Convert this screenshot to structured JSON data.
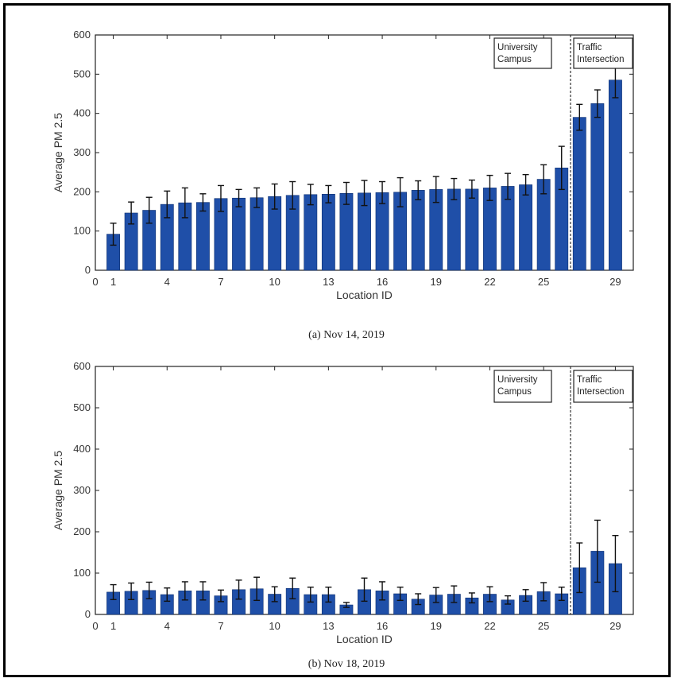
{
  "chart_data": [
    {
      "type": "bar",
      "caption": "(a) Nov 14, 2019",
      "xlabel": "Location ID",
      "ylabel": "Average PM 2.5",
      "ylim": [
        0,
        600
      ],
      "xlim": [
        0,
        30
      ],
      "yticks": [
        0,
        100,
        200,
        300,
        400,
        500,
        600
      ],
      "xticks": [
        0,
        1,
        4,
        7,
        10,
        13,
        16,
        19,
        22,
        25,
        29
      ],
      "bar_color": "#1f4fa8",
      "regions": [
        {
          "label_lines": [
            "University",
            "Campus"
          ]
        },
        {
          "label_lines": [
            "Traffic",
            "Intersection"
          ]
        }
      ],
      "divider_x": 26.5,
      "x": [
        1,
        2,
        3,
        4,
        5,
        6,
        7,
        8,
        9,
        10,
        11,
        12,
        13,
        14,
        15,
        16,
        17,
        18,
        19,
        20,
        21,
        22,
        23,
        24,
        25,
        26,
        27,
        28,
        29
      ],
      "values": [
        92,
        146,
        153,
        168,
        172,
        173,
        183,
        184,
        185,
        188,
        191,
        193,
        194,
        196,
        197,
        198,
        199,
        204,
        206,
        207,
        207,
        210,
        214,
        218,
        232,
        261,
        390,
        425,
        485
      ],
      "errors": [
        28,
        28,
        33,
        34,
        38,
        22,
        33,
        22,
        25,
        32,
        35,
        26,
        22,
        28,
        32,
        28,
        37,
        24,
        33,
        27,
        23,
        32,
        33,
        26,
        37,
        55,
        33,
        35,
        45
      ]
    },
    {
      "type": "bar",
      "caption": "(b) Nov 18, 2019",
      "xlabel": "Location ID",
      "ylabel": "Average PM 2.5",
      "ylim": [
        0,
        600
      ],
      "xlim": [
        0,
        30
      ],
      "yticks": [
        0,
        100,
        200,
        300,
        400,
        500,
        600
      ],
      "xticks": [
        0,
        1,
        4,
        7,
        10,
        13,
        16,
        19,
        22,
        25,
        29
      ],
      "bar_color": "#1f4fa8",
      "regions": [
        {
          "label_lines": [
            "University",
            "Campus"
          ]
        },
        {
          "label_lines": [
            "Traffic",
            "Intersection"
          ]
        }
      ],
      "divider_x": 26.5,
      "x": [
        1,
        2,
        3,
        4,
        5,
        6,
        7,
        8,
        9,
        10,
        11,
        12,
        13,
        14,
        15,
        16,
        17,
        18,
        19,
        20,
        21,
        22,
        23,
        24,
        25,
        26,
        27,
        28,
        29
      ],
      "values": [
        54,
        56,
        58,
        48,
        57,
        57,
        45,
        60,
        62,
        49,
        63,
        48,
        48,
        23,
        60,
        57,
        50,
        37,
        47,
        49,
        40,
        49,
        35,
        46,
        55,
        50,
        113,
        153,
        123
      ],
      "errors": [
        18,
        20,
        20,
        16,
        22,
        22,
        14,
        23,
        28,
        18,
        25,
        18,
        18,
        6,
        28,
        22,
        16,
        13,
        18,
        20,
        12,
        18,
        10,
        14,
        22,
        16,
        60,
        75,
        68
      ]
    }
  ]
}
